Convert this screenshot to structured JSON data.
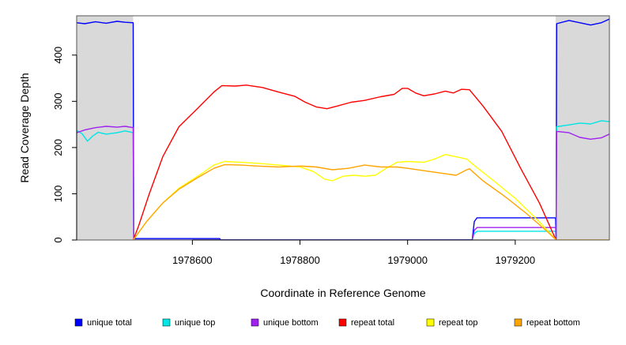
{
  "chart_data": {
    "type": "line",
    "xlabel": "Coordinate in Reference Genome",
    "ylabel": "Read Coverage Depth",
    "xlim": [
      1978385,
      1979375
    ],
    "ylim": [
      0,
      485
    ],
    "x_ticks": [
      1978600,
      1978800,
      1979000,
      1979200
    ],
    "y_ticks": [
      0,
      100,
      200,
      300,
      400
    ],
    "grid": false,
    "legend_position": "bottom",
    "shaded_regions": [
      {
        "from": 1978385,
        "to": 1978490,
        "color": "#d9d9d9"
      },
      {
        "from": 1979275,
        "to": 1979375,
        "color": "#d9d9d9"
      }
    ],
    "series": [
      {
        "name": "unique total",
        "color": "#0000ff",
        "points": [
          [
            1978385,
            470
          ],
          [
            1978400,
            468
          ],
          [
            1978420,
            472
          ],
          [
            1978440,
            469
          ],
          [
            1978460,
            473
          ],
          [
            1978475,
            471
          ],
          [
            1978490,
            470
          ],
          [
            1978491,
            0
          ],
          [
            1978492,
            3
          ],
          [
            1978580,
            3
          ],
          [
            1978651,
            3
          ],
          [
            1978652,
            0
          ],
          [
            1979120,
            0
          ],
          [
            1979124,
            40
          ],
          [
            1979129,
            48
          ],
          [
            1979275,
            48
          ],
          [
            1979276,
            0
          ],
          [
            1979277,
            468
          ],
          [
            1979300,
            475
          ],
          [
            1979320,
            470
          ],
          [
            1979340,
            465
          ],
          [
            1979360,
            470
          ],
          [
            1979375,
            478
          ]
        ]
      },
      {
        "name": "unique top",
        "color": "#00e5e5",
        "points": [
          [
            1978385,
            237
          ],
          [
            1978395,
            230
          ],
          [
            1978405,
            214
          ],
          [
            1978415,
            225
          ],
          [
            1978425,
            233
          ],
          [
            1978440,
            229
          ],
          [
            1978460,
            232
          ],
          [
            1978475,
            236
          ],
          [
            1978490,
            232
          ],
          [
            1978491,
            0
          ],
          [
            1979120,
            0
          ],
          [
            1979124,
            14
          ],
          [
            1979129,
            19
          ],
          [
            1979275,
            19
          ],
          [
            1979276,
            0
          ],
          [
            1979277,
            245
          ],
          [
            1979300,
            249
          ],
          [
            1979320,
            253
          ],
          [
            1979340,
            251
          ],
          [
            1979360,
            258
          ],
          [
            1979375,
            256
          ]
        ]
      },
      {
        "name": "unique bottom",
        "color": "#a020f0",
        "points": [
          [
            1978385,
            232
          ],
          [
            1978400,
            238
          ],
          [
            1978420,
            243
          ],
          [
            1978440,
            246
          ],
          [
            1978460,
            244
          ],
          [
            1978475,
            246
          ],
          [
            1978490,
            243
          ],
          [
            1978491,
            0
          ],
          [
            1979120,
            0
          ],
          [
            1979124,
            21
          ],
          [
            1979129,
            27
          ],
          [
            1979275,
            27
          ],
          [
            1979276,
            0
          ],
          [
            1979277,
            235
          ],
          [
            1979300,
            232
          ],
          [
            1979320,
            222
          ],
          [
            1979340,
            218
          ],
          [
            1979360,
            221
          ],
          [
            1979375,
            229
          ]
        ]
      },
      {
        "name": "repeat total",
        "color": "#ff0000",
        "points": [
          [
            1978490,
            0
          ],
          [
            1978500,
            30
          ],
          [
            1978520,
            100
          ],
          [
            1978545,
            180
          ],
          [
            1978575,
            245
          ],
          [
            1978610,
            285
          ],
          [
            1978640,
            320
          ],
          [
            1978655,
            334
          ],
          [
            1978680,
            333
          ],
          [
            1978700,
            335
          ],
          [
            1978730,
            330
          ],
          [
            1978760,
            320
          ],
          [
            1978790,
            311
          ],
          [
            1978810,
            298
          ],
          [
            1978830,
            288
          ],
          [
            1978850,
            284
          ],
          [
            1978870,
            290
          ],
          [
            1978895,
            298
          ],
          [
            1978920,
            302
          ],
          [
            1978950,
            310
          ],
          [
            1978975,
            315
          ],
          [
            1978990,
            328
          ],
          [
            1979000,
            328
          ],
          [
            1979015,
            318
          ],
          [
            1979030,
            312
          ],
          [
            1979050,
            316
          ],
          [
            1979070,
            322
          ],
          [
            1979085,
            318
          ],
          [
            1979100,
            326
          ],
          [
            1979115,
            325
          ],
          [
            1979140,
            290
          ],
          [
            1979175,
            235
          ],
          [
            1979210,
            155
          ],
          [
            1979245,
            80
          ],
          [
            1979270,
            15
          ],
          [
            1979276,
            0
          ]
        ]
      },
      {
        "name": "repeat top",
        "color": "#ffff00",
        "points": [
          [
            1978490,
            0
          ],
          [
            1978515,
            40
          ],
          [
            1978545,
            80
          ],
          [
            1978575,
            112
          ],
          [
            1978610,
            138
          ],
          [
            1978640,
            162
          ],
          [
            1978660,
            170
          ],
          [
            1978690,
            168
          ],
          [
            1978720,
            166
          ],
          [
            1978760,
            162
          ],
          [
            1978800,
            158
          ],
          [
            1978825,
            148
          ],
          [
            1978845,
            132
          ],
          [
            1978860,
            128
          ],
          [
            1978880,
            138
          ],
          [
            1978900,
            140
          ],
          [
            1978920,
            138
          ],
          [
            1978940,
            140
          ],
          [
            1978960,
            155
          ],
          [
            1978980,
            168
          ],
          [
            1979000,
            170
          ],
          [
            1979030,
            168
          ],
          [
            1979050,
            175
          ],
          [
            1979070,
            185
          ],
          [
            1979090,
            180
          ],
          [
            1979110,
            175
          ],
          [
            1979120,
            165
          ],
          [
            1979160,
            128
          ],
          [
            1979200,
            90
          ],
          [
            1979240,
            45
          ],
          [
            1979270,
            8
          ],
          [
            1979276,
            0
          ]
        ]
      },
      {
        "name": "repeat bottom",
        "color": "#ffa500",
        "points": [
          [
            1978490,
            0
          ],
          [
            1978515,
            40
          ],
          [
            1978545,
            80
          ],
          [
            1978575,
            110
          ],
          [
            1978610,
            135
          ],
          [
            1978640,
            155
          ],
          [
            1978660,
            163
          ],
          [
            1978690,
            162
          ],
          [
            1978720,
            160
          ],
          [
            1978760,
            158
          ],
          [
            1978800,
            160
          ],
          [
            1978830,
            158
          ],
          [
            1978860,
            152
          ],
          [
            1978890,
            155
          ],
          [
            1978920,
            162
          ],
          [
            1978950,
            158
          ],
          [
            1978980,
            158
          ],
          [
            1979000,
            155
          ],
          [
            1979030,
            150
          ],
          [
            1979060,
            145
          ],
          [
            1979090,
            140
          ],
          [
            1979110,
            152
          ],
          [
            1979115,
            154
          ],
          [
            1979140,
            128
          ],
          [
            1979180,
            95
          ],
          [
            1979220,
            58
          ],
          [
            1979260,
            18
          ],
          [
            1979276,
            0
          ],
          [
            1979375,
            0
          ]
        ]
      }
    ]
  }
}
